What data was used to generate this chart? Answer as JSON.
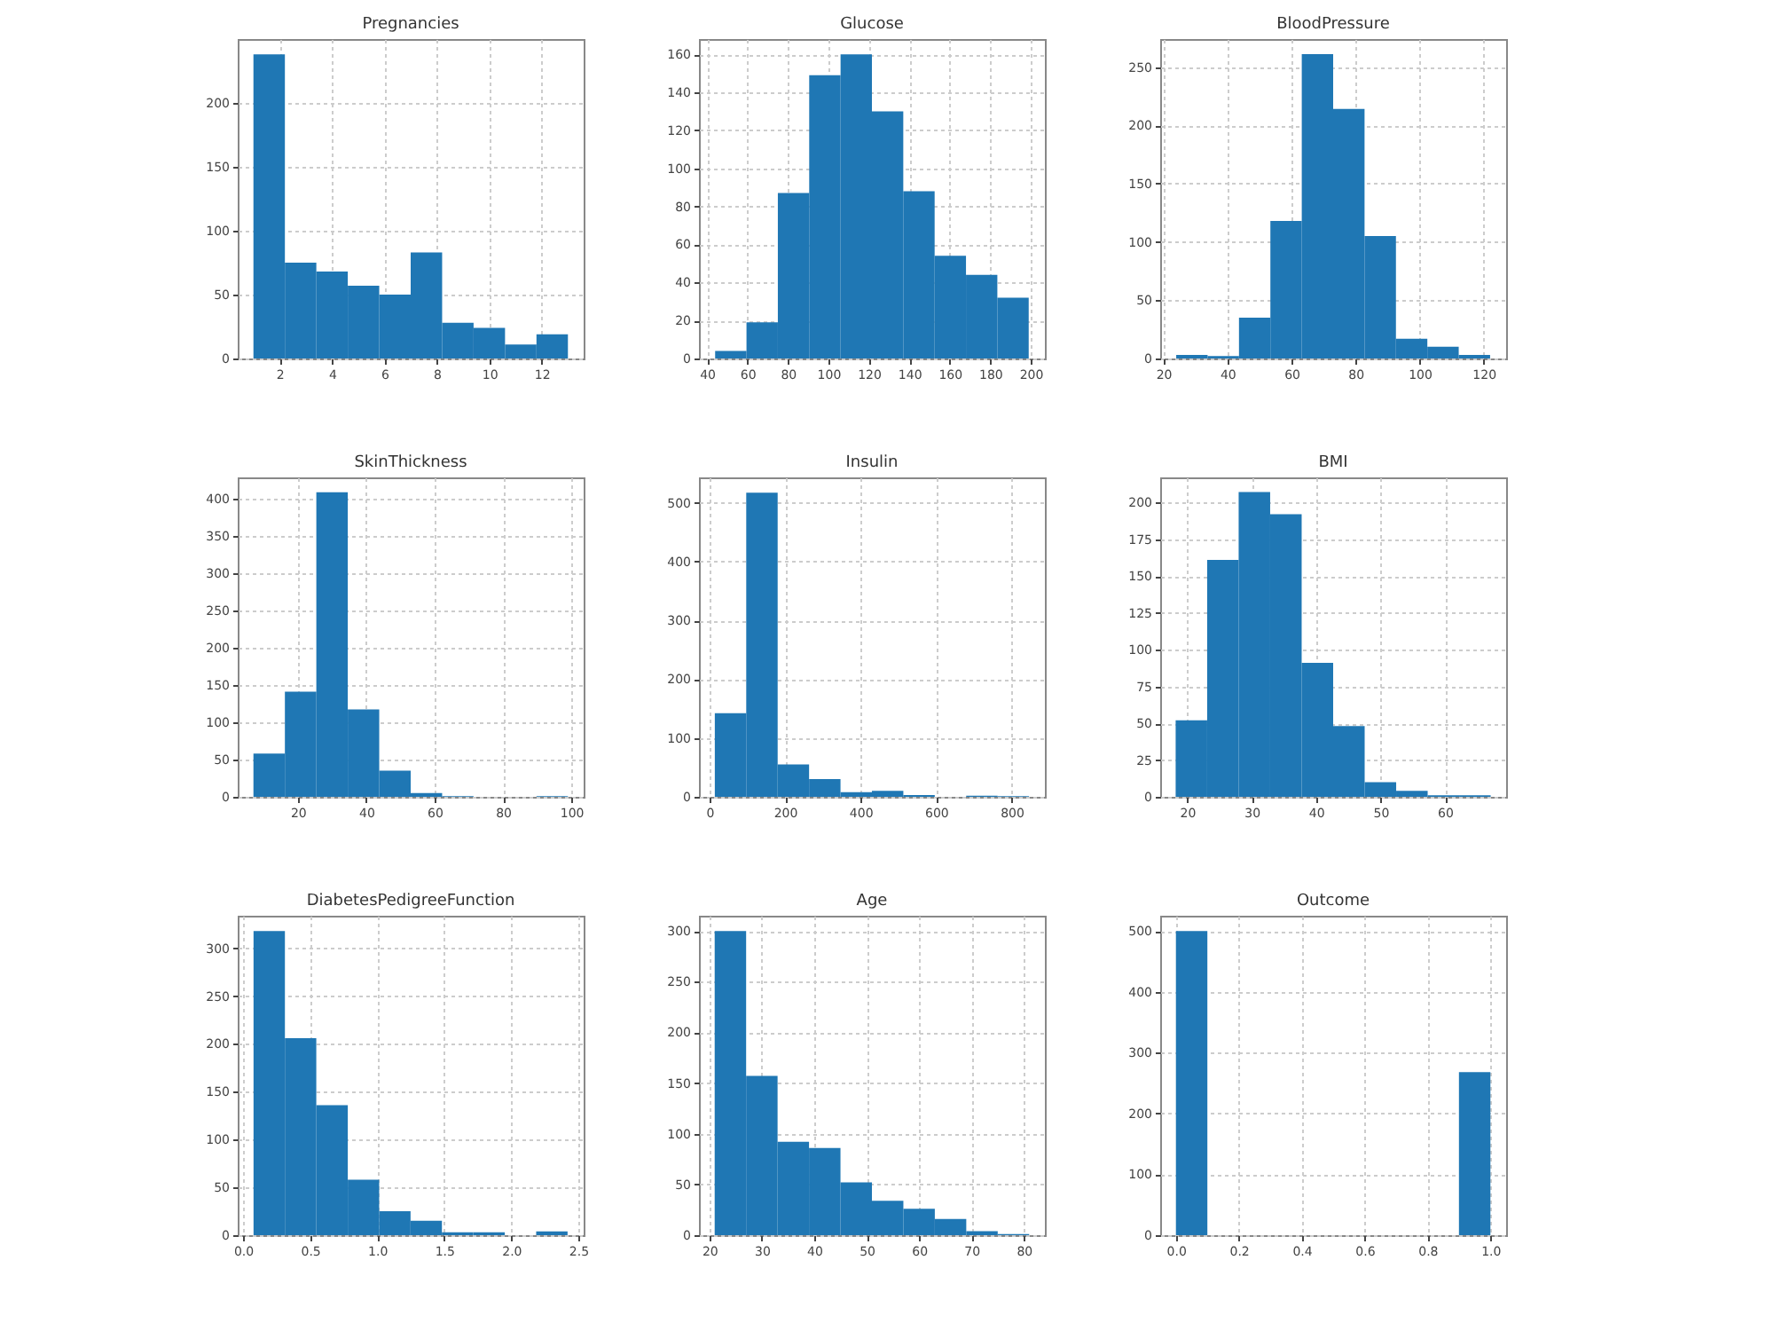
{
  "chart_data": [
    {
      "type": "histogram",
      "title": "Pregnancies",
      "bins": [
        1,
        2.2,
        3.4,
        4.6,
        5.8,
        7,
        8.2,
        9.4,
        10.6,
        11.8,
        13
      ],
      "values": [
        238,
        75,
        68,
        57,
        50,
        83,
        28,
        24,
        11,
        19
      ],
      "color": "#1f77b4",
      "xlim": [
        0.4,
        13.6
      ],
      "xticks": [
        2,
        4,
        6,
        8,
        10,
        12
      ],
      "ylim": [
        0,
        250
      ],
      "yticks": [
        0,
        50,
        100,
        150,
        200
      ],
      "grid": true
    },
    {
      "type": "histogram",
      "title": "Glucose",
      "bins": [
        44,
        59.5,
        75,
        90.5,
        106,
        121.5,
        137,
        152.5,
        168,
        183.5,
        199
      ],
      "values": [
        4,
        19,
        87,
        149,
        160,
        130,
        88,
        54,
        44,
        32
      ],
      "color": "#1f77b4",
      "xlim": [
        36,
        207
      ],
      "xticks": [
        40,
        60,
        80,
        100,
        120,
        140,
        160,
        180,
        200
      ],
      "ylim": [
        0,
        168
      ],
      "yticks": [
        0,
        20,
        40,
        60,
        80,
        100,
        120,
        140,
        160
      ],
      "grid": true
    },
    {
      "type": "histogram",
      "title": "BloodPressure",
      "bins": [
        24,
        33.8,
        43.6,
        53.4,
        63.2,
        73,
        82.8,
        92.6,
        102.4,
        112.2,
        122
      ],
      "values": [
        3,
        2,
        35,
        118,
        261,
        214,
        105,
        17,
        10,
        3
      ],
      "color": "#1f77b4",
      "xlim": [
        19,
        127
      ],
      "xticks": [
        20,
        40,
        60,
        80,
        100,
        120
      ],
      "ylim": [
        0,
        274
      ],
      "yticks": [
        0,
        50,
        100,
        150,
        200,
        250
      ],
      "grid": true
    },
    {
      "type": "histogram",
      "title": "SkinThickness",
      "bins": [
        7,
        16.2,
        25.4,
        34.6,
        43.8,
        53,
        62.2,
        71.4,
        80.6,
        89.8,
        99
      ],
      "values": [
        58,
        141,
        408,
        117,
        35,
        5,
        1,
        0,
        0,
        1
      ],
      "color": "#1f77b4",
      "xlim": [
        2.4,
        103.6
      ],
      "xticks": [
        20,
        40,
        60,
        80,
        100
      ],
      "ylim": [
        0,
        428
      ],
      "yticks": [
        0,
        50,
        100,
        150,
        200,
        250,
        300,
        350,
        400
      ],
      "grid": true
    },
    {
      "type": "histogram",
      "title": "Insulin",
      "bins": [
        14,
        97.2,
        180.4,
        263.6,
        346.8,
        430,
        513.2,
        596.4,
        679.6,
        762.8,
        846
      ],
      "values": [
        142,
        517,
        55,
        30,
        8,
        10,
        3,
        0,
        2,
        1
      ],
      "color": "#1f77b4",
      "xlim": [
        -28,
        888
      ],
      "xticks": [
        0,
        200,
        400,
        600,
        800
      ],
      "ylim": [
        0,
        543
      ],
      "yticks": [
        0,
        100,
        200,
        300,
        400,
        500
      ],
      "grid": true
    },
    {
      "type": "histogram",
      "title": "BMI",
      "bins": [
        18.2,
        23.09,
        27.98,
        32.87,
        37.76,
        42.65,
        47.54,
        52.43,
        57.32,
        62.21,
        67.1
      ],
      "values": [
        52,
        161,
        207,
        192,
        91,
        48,
        10,
        4,
        1,
        1
      ],
      "color": "#1f77b4",
      "xlim": [
        15.8,
        69.5
      ],
      "xticks": [
        20,
        30,
        40,
        50,
        60
      ],
      "ylim": [
        0,
        217
      ],
      "yticks": [
        0,
        25,
        50,
        75,
        100,
        125,
        150,
        175,
        200
      ],
      "grid": true
    },
    {
      "type": "histogram",
      "title": "DiabetesPedigreeFunction",
      "bins": [
        0.078,
        0.312,
        0.546,
        0.781,
        1.015,
        1.249,
        1.483,
        1.717,
        1.952,
        2.186,
        2.42
      ],
      "values": [
        318,
        206,
        136,
        58,
        25,
        15,
        3,
        3,
        0,
        4
      ],
      "color": "#1f77b4",
      "xlim": [
        -0.04,
        2.54
      ],
      "xticks": [
        {
          "value": 0,
          "label": "0.0"
        },
        {
          "value": 0.5,
          "label": "0.5"
        },
        {
          "value": 1,
          "label": "1.0"
        },
        {
          "value": 1.5,
          "label": "1.5"
        },
        {
          "value": 2,
          "label": "2.0"
        },
        {
          "value": 2.5,
          "label": "2.5"
        }
      ],
      "ylim": [
        0,
        334
      ],
      "yticks": [
        0,
        50,
        100,
        150,
        200,
        250,
        300
      ],
      "grid": true
    },
    {
      "type": "histogram",
      "title": "Age",
      "bins": [
        21,
        27,
        33,
        39,
        45,
        51,
        57,
        63,
        69,
        75,
        81
      ],
      "values": [
        300,
        157,
        92,
        86,
        52,
        34,
        26,
        16,
        4,
        1
      ],
      "color": "#1f77b4",
      "xlim": [
        18,
        84
      ],
      "xticks": [
        20,
        30,
        40,
        50,
        60,
        70,
        80
      ],
      "ylim": [
        0,
        315
      ],
      "yticks": [
        0,
        50,
        100,
        150,
        200,
        250,
        300
      ],
      "grid": true
    },
    {
      "type": "histogram",
      "title": "Outcome",
      "bins": [
        0,
        0.1,
        0.2,
        0.3,
        0.4,
        0.5,
        0.6,
        0.7,
        0.8,
        0.9,
        1
      ],
      "values": [
        500,
        0,
        0,
        0,
        0,
        0,
        0,
        0,
        0,
        268
      ],
      "color": "#1f77b4",
      "xlim": [
        -0.05,
        1.05
      ],
      "xticks": [
        {
          "value": 0,
          "label": "0.0"
        },
        {
          "value": 0.2,
          "label": "0.2"
        },
        {
          "value": 0.4,
          "label": "0.4"
        },
        {
          "value": 0.6,
          "label": "0.6"
        },
        {
          "value": 0.8,
          "label": "0.8"
        },
        {
          "value": 1,
          "label": "1.0"
        }
      ],
      "ylim": [
        0,
        525
      ],
      "yticks": [
        0,
        100,
        200,
        300,
        400,
        500
      ],
      "grid": true
    }
  ]
}
